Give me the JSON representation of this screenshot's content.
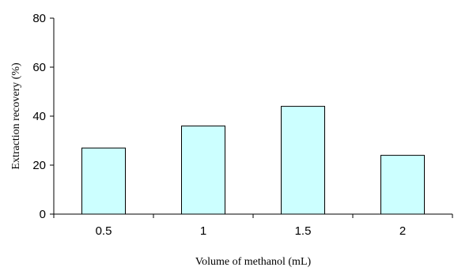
{
  "chart_data": {
    "type": "bar",
    "title": "",
    "xlabel": "Volume of methanol (mL)",
    "ylabel": "Extraction recovery (%)",
    "categories": [
      "0.5",
      "1",
      "1.5",
      "2"
    ],
    "values": [
      27,
      36,
      44,
      24
    ],
    "ylim": [
      0,
      80
    ],
    "yticks": [
      "0",
      "20",
      "40",
      "60",
      "80"
    ],
    "grid": false,
    "legend": "none",
    "bar_color": "#ccffff",
    "bar_edge_color": "#000000"
  }
}
